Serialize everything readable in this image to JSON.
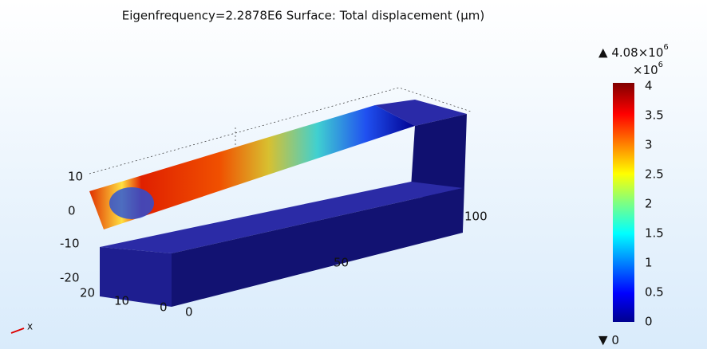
{
  "title": "Eigenfrequency=2.2878E6   Surface: Total displacement (µm)",
  "colorbar": {
    "max_label": "4.08×10",
    "max_exp": "6",
    "multiplier": "×10",
    "multiplier_exp": "6",
    "ticks": [
      "4",
      "3.5",
      "3",
      "2.5",
      "2",
      "1.5",
      "1",
      "0.5",
      "0"
    ],
    "min_label": "0"
  },
  "axes": {
    "z_ticks": [
      "10",
      "0",
      "-10",
      "-20"
    ],
    "y_ticks": [
      "20",
      "10",
      "0"
    ],
    "x_ticks": [
      "0",
      "50",
      "100"
    ],
    "x_axis": "x"
  }
}
